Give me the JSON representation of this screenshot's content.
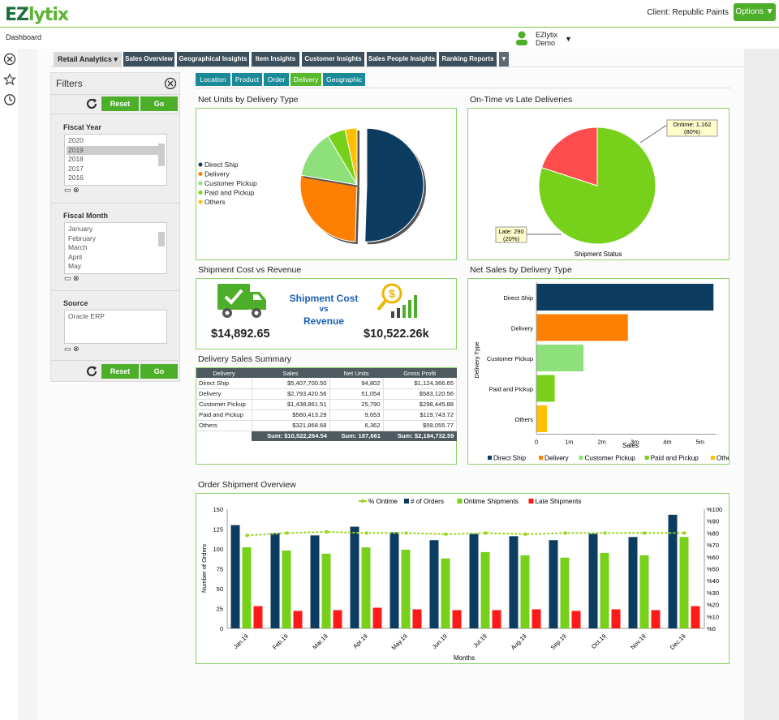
{
  "header": {
    "logo_main": "EZ",
    "logo_accent": "lytix",
    "client_label": "Client:",
    "client_name": "Republic Paints",
    "options_label": "Options ▼",
    "dashboard_tab": "Dashboard",
    "user_name_line1": "EZlytix",
    "user_name_line2": "Demo"
  },
  "tabs": [
    {
      "label": "Retail Analytics ▾",
      "x": 66,
      "w": 84
    },
    {
      "label": "Sales Overview"
    },
    {
      "label": "Geographical Insights"
    },
    {
      "label": "Item Insights"
    },
    {
      "label": "Customer Insights"
    },
    {
      "label": "Sales People Insights"
    },
    {
      "label": "Ranking Reports"
    }
  ],
  "subtabs": [
    "Location",
    "Product",
    "Order",
    "Delivery",
    "Geographic"
  ],
  "active_subtab": "Delivery",
  "filters": {
    "title": "Filters",
    "reset_label": "Reset",
    "go_label": "Go",
    "fiscal_year": {
      "label": "Fiscal Year",
      "options": [
        "2020",
        "2019",
        "2018",
        "2017",
        "2016"
      ],
      "selected": "2019"
    },
    "fiscal_month": {
      "label": "Fiscal Month",
      "options": [
        "January",
        "February",
        "March",
        "April",
        "May"
      ]
    },
    "source": {
      "label": "Source",
      "options": [
        "Oracle ERP"
      ]
    }
  },
  "panels": {
    "net_units_title": "Net Units by Delivery Type",
    "ontime_title": "On-Time vs Late Deliveries",
    "cost_revenue_title": "Shipment Cost vs Revenue",
    "net_sales_title": "Net Sales by Delivery Type",
    "summary_title": "Delivery Sales Summary",
    "order_overview_title": "Order Shipment Overview"
  },
  "cost_revenue": {
    "heading_1": "Shipment Cost",
    "heading_2": "vs",
    "heading_3": "Revenue",
    "cost_value": "$14,892.65",
    "revenue_value": "$10,522.26k"
  },
  "summary_table": {
    "headers": [
      "Delivery",
      "Sales",
      "Net Units",
      "Gross Profit"
    ],
    "rows": [
      [
        "Direct Ship",
        "$5,407,700.50",
        "94,802",
        "$1,124,366.65"
      ],
      [
        "Delivery",
        "$2,793,420.56",
        "51,054",
        "$583,120.56"
      ],
      [
        "Customer Pickup",
        "$1,438,861.51",
        "25,790",
        "$298,445.88"
      ],
      [
        "Paid and Pickup",
        "$560,413.29",
        "9,653",
        "$119,743.72"
      ],
      [
        "Others",
        "$321,868.68",
        "6,362",
        "$59,055.77"
      ]
    ],
    "totals": [
      "",
      "Sum: $10,522,264.54",
      "Sum: 187,661",
      "Sum: $2,184,732.59"
    ]
  },
  "colors": {
    "direct_ship": "#0d3c61",
    "delivery": "#ff8000",
    "customer_pickup": "#8ee07a",
    "paid_pickup": "#77d11b",
    "others": "#ffc000",
    "late": "#ff4d4d",
    "ontime": "#77d11b",
    "orders": "#0d3c61",
    "late_ship": "#ff1a1a",
    "pct_line": "#99d61e"
  },
  "chart_data": [
    {
      "id": "net_units",
      "type": "pie",
      "title": "Net Units by Delivery Type",
      "labels": [
        "Direct Ship",
        "Delivery",
        "Customer Pickup",
        "Paid and Pickup",
        "Others"
      ],
      "values": [
        94802,
        51054,
        25790,
        9653,
        6362
      ],
      "legend": "left"
    },
    {
      "id": "ontime_late",
      "type": "pie",
      "title": "On-Time vs Late Deliveries",
      "xlabel": "Shipment Status",
      "labels": [
        "Ontime",
        "Late"
      ],
      "values": [
        1162,
        290
      ],
      "data_labels": [
        "Ontime: 1,162",
        "(80%)",
        "Late: 290",
        "(20%)"
      ]
    },
    {
      "id": "net_sales",
      "type": "bar",
      "orientation": "horizontal",
      "title": "Net Sales by Delivery Type",
      "categories": [
        "Direct Ship",
        "Delivery",
        "Customer Pickup",
        "Paid and Pickup",
        "Others"
      ],
      "values": [
        5407700.5,
        2793420.56,
        1438861.51,
        560413.29,
        321868.68
      ],
      "xlabel": "Sales",
      "ylabel": "Delivery Type",
      "xlim": [
        0,
        5500000
      ],
      "xticks": [
        0,
        1000000,
        2000000,
        3000000,
        4000000,
        5000000
      ],
      "xtick_labels": [
        "0",
        "1m",
        "2m",
        "3m",
        "4m",
        "5m"
      ],
      "legend": "bottom"
    },
    {
      "id": "order_overview",
      "type": "bar",
      "title": "Order Shipment Overview",
      "categories": [
        "Jan.19",
        "Feb.19",
        "Mar.19",
        "Apr.19",
        "May.19",
        "Jun.19",
        "Jul.19",
        "Aug.19",
        "Sep.19",
        "Oct.19",
        "Nov.19",
        "Dec.19"
      ],
      "series": [
        {
          "name": "# of Orders",
          "values": [
            130,
            120,
            117,
            128,
            121,
            111,
            119,
            116,
            111,
            119,
            115,
            143
          ]
        },
        {
          "name": "Ontime Shipments",
          "values": [
            102,
            98,
            94,
            102,
            99,
            88,
            96,
            92,
            89,
            95,
            92,
            115
          ]
        },
        {
          "name": "Late Shipments",
          "values": [
            28,
            22,
            23,
            26,
            24,
            23,
            23,
            24,
            22,
            24,
            23,
            28
          ]
        },
        {
          "name": "% Ontime",
          "type": "line",
          "axis": "right",
          "values": [
            78,
            80,
            81,
            80,
            80,
            79,
            80,
            79,
            80,
            80,
            80,
            80
          ]
        }
      ],
      "xlabel": "Months",
      "ylabel": "Number of Orders",
      "ylim": [
        0,
        150
      ],
      "yticks": [
        0,
        25,
        50,
        75,
        100,
        125,
        150
      ],
      "y2lim": [
        0,
        100
      ],
      "y2ticks": [
        "%0",
        "%10",
        "%20",
        "%30",
        "%40",
        "%50",
        "%60",
        "%70",
        "%80",
        "%90",
        "%100"
      ],
      "legend": "top"
    }
  ]
}
